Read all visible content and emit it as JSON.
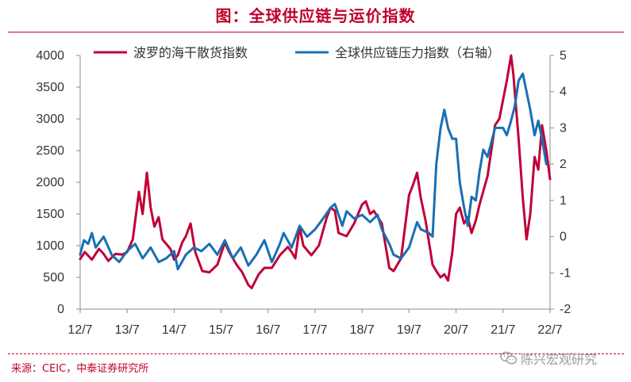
{
  "title": "图：全球供应链与运价指数",
  "source": "来源：CEIC，中泰证券研究所",
  "watermark": "陈兴宏观研究",
  "colors": {
    "baltic": "#c00037",
    "gscpi": "#1a6fb4",
    "accent": "#c0002a"
  },
  "chart_data": {
    "type": "line",
    "x_ticks": [
      "12/7",
      "13/7",
      "14/7",
      "15/7",
      "16/7",
      "17/7",
      "18/7",
      "19/7",
      "20/7",
      "21/7",
      "22/7"
    ],
    "left_axis": {
      "ylim": [
        0,
        4000
      ],
      "ticks": [
        "0",
        "500",
        "1000",
        "1500",
        "2000",
        "2500",
        "3000",
        "3500",
        "4000"
      ]
    },
    "right_axis": {
      "ylim": [
        -2,
        5
      ],
      "ticks": [
        "-2",
        "-1",
        "0",
        "1",
        "2",
        "3",
        "4",
        "5"
      ]
    },
    "legend_position": "top",
    "series": [
      {
        "name": "波罗的海干散货指数",
        "axis": "left",
        "color": "#c00037",
        "points": [
          [
            2012.5,
            790
          ],
          [
            2012.6,
            900
          ],
          [
            2012.75,
            780
          ],
          [
            2012.9,
            950
          ],
          [
            2013.0,
            870
          ],
          [
            2013.1,
            760
          ],
          [
            2013.25,
            870
          ],
          [
            2013.4,
            860
          ],
          [
            2013.5,
            900
          ],
          [
            2013.62,
            1100
          ],
          [
            2013.75,
            1850
          ],
          [
            2013.83,
            1500
          ],
          [
            2013.92,
            2150
          ],
          [
            2014.0,
            1600
          ],
          [
            2014.08,
            1300
          ],
          [
            2014.17,
            1450
          ],
          [
            2014.25,
            1100
          ],
          [
            2014.42,
            950
          ],
          [
            2014.5,
            780
          ],
          [
            2014.58,
            850
          ],
          [
            2014.67,
            1050
          ],
          [
            2014.75,
            1150
          ],
          [
            2014.85,
            1350
          ],
          [
            2014.95,
            900
          ],
          [
            2015.1,
            600
          ],
          [
            2015.25,
            580
          ],
          [
            2015.42,
            700
          ],
          [
            2015.58,
            1050
          ],
          [
            2015.67,
            900
          ],
          [
            2015.83,
            700
          ],
          [
            2015.95,
            580
          ],
          [
            2016.08,
            380
          ],
          [
            2016.15,
            330
          ],
          [
            2016.3,
            550
          ],
          [
            2016.42,
            650
          ],
          [
            2016.58,
            650
          ],
          [
            2016.75,
            850
          ],
          [
            2016.92,
            980
          ],
          [
            2017.0,
            900
          ],
          [
            2017.08,
            800
          ],
          [
            2017.17,
            1300
          ],
          [
            2017.25,
            1000
          ],
          [
            2017.42,
            850
          ],
          [
            2017.58,
            1000
          ],
          [
            2017.75,
            1450
          ],
          [
            2017.83,
            1600
          ],
          [
            2017.92,
            1550
          ],
          [
            2018.0,
            1200
          ],
          [
            2018.17,
            1150
          ],
          [
            2018.33,
            1350
          ],
          [
            2018.5,
            1650
          ],
          [
            2018.58,
            1700
          ],
          [
            2018.67,
            1500
          ],
          [
            2018.75,
            1550
          ],
          [
            2018.92,
            1350
          ],
          [
            2019.08,
            650
          ],
          [
            2019.17,
            600
          ],
          [
            2019.33,
            800
          ],
          [
            2019.5,
            1800
          ],
          [
            2019.58,
            1950
          ],
          [
            2019.67,
            2150
          ],
          [
            2019.75,
            1750
          ],
          [
            2019.85,
            1400
          ],
          [
            2020.0,
            700
          ],
          [
            2020.08,
            600
          ],
          [
            2020.17,
            500
          ],
          [
            2020.25,
            550
          ],
          [
            2020.33,
            450
          ],
          [
            2020.42,
            900
          ],
          [
            2020.5,
            1500
          ],
          [
            2020.58,
            1600
          ],
          [
            2020.67,
            1350
          ],
          [
            2020.75,
            1450
          ],
          [
            2020.83,
            1200
          ],
          [
            2020.92,
            1400
          ],
          [
            2021.0,
            1650
          ],
          [
            2021.17,
            2100
          ],
          [
            2021.33,
            2900
          ],
          [
            2021.42,
            3000
          ],
          [
            2021.5,
            3300
          ],
          [
            2021.58,
            3600
          ],
          [
            2021.67,
            4000
          ],
          [
            2021.72,
            3700
          ],
          [
            2021.83,
            2700
          ],
          [
            2021.92,
            1750
          ],
          [
            2022.0,
            1100
          ],
          [
            2022.08,
            1500
          ],
          [
            2022.17,
            2400
          ],
          [
            2022.25,
            2200
          ],
          [
            2022.33,
            2900
          ],
          [
            2022.42,
            2500
          ],
          [
            2022.5,
            2050
          ]
        ]
      },
      {
        "name": "全球供应链压力指数（右轴）",
        "axis": "right",
        "color": "#1a6fb4",
        "points": [
          [
            2012.5,
            -0.5
          ],
          [
            2012.58,
            -0.1
          ],
          [
            2012.67,
            -0.2
          ],
          [
            2012.75,
            0.1
          ],
          [
            2012.83,
            -0.3
          ],
          [
            2013.0,
            0.0
          ],
          [
            2013.17,
            -0.5
          ],
          [
            2013.33,
            -0.7
          ],
          [
            2013.5,
            -0.4
          ],
          [
            2013.67,
            -0.2
          ],
          [
            2013.83,
            -0.6
          ],
          [
            2014.0,
            -0.3
          ],
          [
            2014.17,
            -0.7
          ],
          [
            2014.33,
            -0.6
          ],
          [
            2014.5,
            -0.4
          ],
          [
            2014.58,
            -0.9
          ],
          [
            2014.75,
            -0.5
          ],
          [
            2014.92,
            -0.3
          ],
          [
            2015.08,
            -0.4
          ],
          [
            2015.25,
            -0.2
          ],
          [
            2015.42,
            -0.5
          ],
          [
            2015.58,
            -0.1
          ],
          [
            2015.75,
            -0.6
          ],
          [
            2015.92,
            -0.3
          ],
          [
            2016.08,
            -0.8
          ],
          [
            2016.25,
            -0.5
          ],
          [
            2016.42,
            -0.1
          ],
          [
            2016.58,
            -0.7
          ],
          [
            2016.75,
            -0.2
          ],
          [
            2016.83,
            0.1
          ],
          [
            2017.0,
            -0.3
          ],
          [
            2017.17,
            0.3
          ],
          [
            2017.33,
            0.0
          ],
          [
            2017.5,
            0.2
          ],
          [
            2017.67,
            0.5
          ],
          [
            2017.83,
            0.8
          ],
          [
            2017.92,
            0.9
          ],
          [
            2018.0,
            0.6
          ],
          [
            2018.08,
            0.3
          ],
          [
            2018.17,
            0.7
          ],
          [
            2018.33,
            0.5
          ],
          [
            2018.5,
            0.6
          ],
          [
            2018.67,
            0.4
          ],
          [
            2018.83,
            0.6
          ],
          [
            2018.92,
            0.2
          ],
          [
            2019.08,
            -0.2
          ],
          [
            2019.17,
            -0.5
          ],
          [
            2019.33,
            -0.6
          ],
          [
            2019.5,
            -0.3
          ],
          [
            2019.67,
            0.4
          ],
          [
            2019.75,
            0.2
          ],
          [
            2019.92,
            0.1
          ],
          [
            2020.0,
            0.0
          ],
          [
            2020.08,
            2.0
          ],
          [
            2020.17,
            3.0
          ],
          [
            2020.25,
            3.5
          ],
          [
            2020.33,
            3.0
          ],
          [
            2020.42,
            2.7
          ],
          [
            2020.5,
            2.7
          ],
          [
            2020.58,
            1.5
          ],
          [
            2020.67,
            0.8
          ],
          [
            2020.75,
            0.3
          ],
          [
            2020.83,
            1.1
          ],
          [
            2020.92,
            1.0
          ],
          [
            2021.0,
            1.8
          ],
          [
            2021.08,
            2.4
          ],
          [
            2021.17,
            2.2
          ],
          [
            2021.33,
            3.0
          ],
          [
            2021.5,
            3.0
          ],
          [
            2021.58,
            2.8
          ],
          [
            2021.67,
            3.2
          ],
          [
            2021.75,
            3.6
          ],
          [
            2021.83,
            4.3
          ],
          [
            2021.92,
            4.5
          ],
          [
            2022.0,
            4.0
          ],
          [
            2022.08,
            3.5
          ],
          [
            2022.17,
            2.8
          ],
          [
            2022.25,
            3.2
          ],
          [
            2022.33,
            2.7
          ],
          [
            2022.42,
            2.0
          ]
        ]
      }
    ]
  }
}
